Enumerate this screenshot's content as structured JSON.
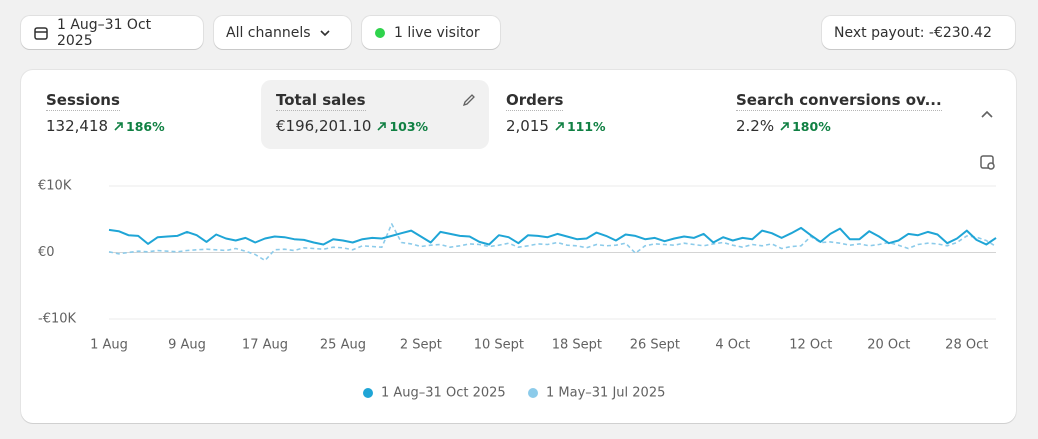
{
  "toolbar": {
    "date_range": "1 Aug–31 Oct 2025",
    "channels": "All channels",
    "live": "1 live visitor",
    "payout": "Next payout: -€230.42"
  },
  "metrics": [
    {
      "label": "Sessions",
      "value": "132,418",
      "change": "186%"
    },
    {
      "label": "Total sales",
      "value": "€196,201.10",
      "change": "103%"
    },
    {
      "label": "Orders",
      "value": "2,015",
      "change": "111%"
    },
    {
      "label": "Search conversions ov...",
      "value": "2.2%",
      "change": "180%"
    }
  ],
  "chart_data": {
    "type": "line",
    "categories": [
      "1 Aug",
      null,
      null,
      null,
      null,
      null,
      null,
      null,
      "9 Aug",
      null,
      null,
      null,
      null,
      null,
      null,
      null,
      "17 Aug",
      null,
      null,
      null,
      null,
      null,
      null,
      null,
      "25 Aug",
      null,
      null,
      null,
      null,
      null,
      null,
      null,
      "2 Sept",
      null,
      null,
      null,
      null,
      null,
      null,
      null,
      "10 Sept",
      null,
      null,
      null,
      null,
      null,
      null,
      null,
      "18 Sept",
      null,
      null,
      null,
      null,
      null,
      null,
      null,
      "26 Sept",
      null,
      null,
      null,
      null,
      null,
      null,
      null,
      "4 Oct",
      null,
      null,
      null,
      null,
      null,
      null,
      null,
      "12 Oct",
      null,
      null,
      null,
      null,
      null,
      null,
      null,
      "20 Oct",
      null,
      null,
      null,
      null,
      null,
      null,
      null,
      "28 Oct",
      null,
      null,
      null
    ],
    "series": [
      {
        "name": "1 Aug–31 Oct 2025",
        "color": "#1fa5d6",
        "line_style": "solid",
        "values": [
          3400,
          3200,
          2600,
          2500,
          1300,
          2300,
          2400,
          2500,
          3100,
          2600,
          1600,
          2700,
          2100,
          1800,
          2200,
          1500,
          2100,
          2400,
          2300,
          2000,
          1900,
          1500,
          1200,
          2000,
          1800,
          1500,
          2000,
          2200,
          2100,
          2500,
          2900,
          3300,
          2400,
          1500,
          3100,
          2800,
          2500,
          2400,
          1600,
          1200,
          2600,
          2300,
          1400,
          2600,
          2500,
          2300,
          2800,
          2400,
          2000,
          2100,
          3000,
          2500,
          1800,
          2700,
          2500,
          2000,
          2200,
          1700,
          2100,
          2400,
          2200,
          2800,
          1500,
          2300,
          1800,
          2200,
          2000,
          3300,
          2900,
          2200,
          2900,
          3700,
          2600,
          1600,
          2800,
          3600,
          2000,
          2000,
          3200,
          2400,
          1400,
          1800,
          2800,
          2600,
          3100,
          2700,
          1400,
          2100,
          3300,
          1900,
          1200,
          2200
        ]
      },
      {
        "name": "1 May–31 Jul 2025",
        "color": "#8ccbea",
        "line_style": "dashed",
        "values": [
          100,
          -200,
          0,
          200,
          100,
          300,
          200,
          100,
          300,
          400,
          500,
          400,
          300,
          600,
          200,
          -300,
          -1200,
          400,
          500,
          300,
          700,
          600,
          500,
          800,
          700,
          400,
          1000,
          900,
          800,
          4300,
          1500,
          1300,
          900,
          1100,
          1200,
          800,
          1000,
          1300,
          1200,
          900,
          1100,
          1400,
          800,
          1000,
          1300,
          1200,
          1500,
          1100,
          1000,
          700,
          1200,
          1000,
          1100,
          1400,
          -100,
          1000,
          1300,
          1200,
          1100,
          1400,
          1200,
          1000,
          1300,
          1500,
          1100,
          800,
          1200,
          1000,
          1300,
          600,
          900,
          1000,
          2400,
          1500,
          1600,
          1400,
          1100,
          1300,
          1000,
          1200,
          1500,
          1100,
          600,
          1200,
          1400,
          1300,
          1000,
          1500,
          2500,
          2300,
          1800,
          900
        ]
      }
    ],
    "ylim": [
      -10000,
      10000
    ],
    "yticks": [
      {
        "value": -10000,
        "label": "-€10K"
      },
      {
        "value": 0,
        "label": "€0"
      },
      {
        "value": 10000,
        "label": "€10K"
      }
    ],
    "grid": true
  }
}
